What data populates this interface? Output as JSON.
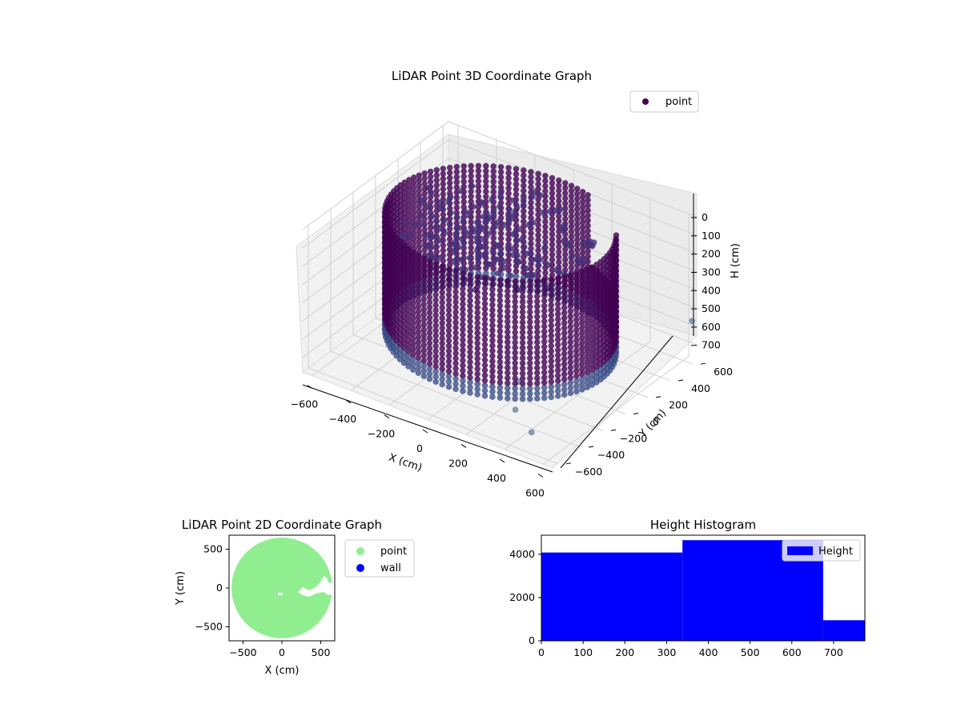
{
  "chart_data": [
    {
      "type": "scatter3d",
      "title": "LiDAR Point 3D Coordinate Graph",
      "xlabel": "X (cm)",
      "ylabel": "Y (cm)",
      "zlabel": "H (cm)",
      "x_ticks": [
        "−600",
        "−400",
        "−200",
        "0",
        "200",
        "400",
        "600"
      ],
      "y_ticks": [
        "−600",
        "−400",
        "−200",
        "0",
        "200",
        "400",
        "600"
      ],
      "z_ticks": [
        "0",
        "100",
        "200",
        "300",
        "400",
        "500",
        "600",
        "700"
      ],
      "xlim": [
        -650,
        650
      ],
      "ylim": [
        -650,
        650
      ],
      "zlim": [
        0,
        780
      ],
      "z_inverted": true,
      "legend": {
        "label": "point",
        "placement": "top-right",
        "color": "#440154"
      },
      "shape": "cylindrical wall of points, radius ~520 cm, height 0-650 cm, with an open sector facing +Y and a dense interior floor cluster",
      "outliers": [
        {
          "x": 600,
          "y": 680,
          "h": 600
        },
        {
          "x": 150,
          "y": -100,
          "h": 760
        },
        {
          "x": 270,
          "y": -330,
          "h": 760
        },
        {
          "x": 430,
          "y": -460,
          "h": 760
        }
      ],
      "colors": {
        "dark": "#440154",
        "mid": "#3b528b",
        "light": "#31688e"
      }
    },
    {
      "type": "scatter",
      "title": "LiDAR Point 2D Coordinate Graph",
      "xlabel": "X (cm)",
      "ylabel": "Y (cm)",
      "x_ticks": [
        "−500",
        "0",
        "500"
      ],
      "y_ticks": [
        "−500",
        "0",
        "500"
      ],
      "xlim": [
        -680,
        680
      ],
      "ylim": [
        -680,
        680
      ],
      "series": [
        {
          "name": "point",
          "color": "#90ee90",
          "shape": "filled disk radius ~600 cm with a small notch on the right side near y=0"
        },
        {
          "name": "wall",
          "color": "#0000ff",
          "points": []
        }
      ],
      "legend": {
        "placement": "outside-right"
      }
    },
    {
      "type": "histogram",
      "title": "Height Histogram",
      "x_ticks": [
        "0",
        "100",
        "200",
        "300",
        "400",
        "500",
        "600",
        "700"
      ],
      "y_ticks": [
        "0",
        "2000",
        "4000"
      ],
      "xlim": [
        0,
        775
      ],
      "ylim": [
        0,
        4880
      ],
      "bins": [
        {
          "from": 0,
          "to": 338,
          "count": 4080
        },
        {
          "from": 338,
          "to": 675,
          "count": 4650
        },
        {
          "from": 675,
          "to": 775,
          "count": 950
        }
      ],
      "series": [
        {
          "name": "Height",
          "color": "#0000ff"
        }
      ],
      "legend": {
        "placement": "top-right"
      }
    }
  ]
}
